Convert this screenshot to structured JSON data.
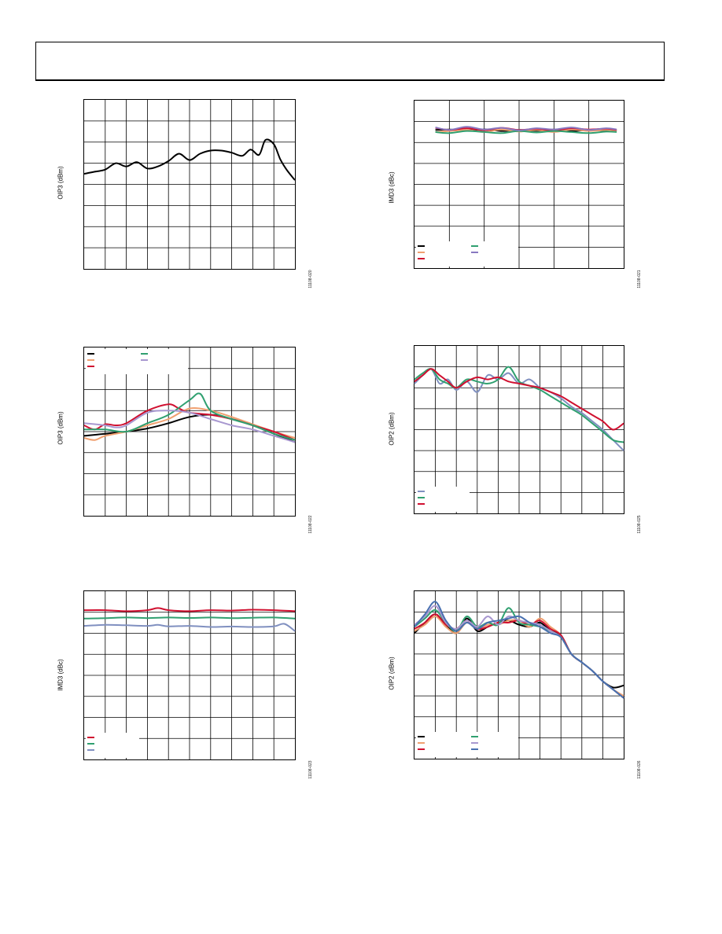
{
  "page": {},
  "figures": [
    {
      "id": "fig1",
      "ylabel": "OIP3 (dBm)",
      "figure_code": "11108-020"
    },
    {
      "id": "fig2",
      "ylabel": "IMD3 (dBc)",
      "figure_code": "11108-021"
    },
    {
      "id": "fig3",
      "ylabel": "OIP3 (dBm)",
      "figure_code": "11108-022"
    },
    {
      "id": "fig4",
      "ylabel": "OIP2 (dBm)",
      "figure_code": "11108-025"
    },
    {
      "id": "fig5",
      "ylabel": "IMD3 (dBc)",
      "figure_code": "11108-023"
    },
    {
      "id": "fig6",
      "ylabel": "OIP2 (dBm)",
      "figure_code": "11108-026"
    }
  ],
  "chart_data": [
    {
      "type": "line",
      "xlim": [
        0,
        10
      ],
      "ylim": [
        0,
        8
      ],
      "grid": true,
      "series": [
        {
          "color": "#000000",
          "x": [
            0,
            0.5,
            1,
            1.5,
            2,
            2.5,
            3,
            3.5,
            4,
            4.5,
            5,
            5.5,
            6,
            6.5,
            7,
            7.5,
            7.9,
            8.3,
            8.6,
            9.0,
            9.3,
            9.6,
            10
          ],
          "y": [
            4.5,
            4.6,
            4.7,
            5.0,
            4.85,
            5.05,
            4.75,
            4.85,
            5.1,
            5.45,
            5.15,
            5.45,
            5.6,
            5.6,
            5.5,
            5.35,
            5.65,
            5.4,
            6.1,
            5.9,
            5.2,
            4.7,
            4.2
          ]
        }
      ]
    },
    {
      "type": "line",
      "xlim": [
        0,
        6
      ],
      "ylim": [
        0,
        8
      ],
      "grid": true,
      "legend": "bottom-left",
      "series": [
        {
          "color": "#000000",
          "x": [
            0.6,
            1,
            1.5,
            2,
            2.5,
            3,
            3.5,
            4,
            4.5,
            5,
            5.5,
            5.8
          ],
          "y": [
            6.6,
            6.62,
            6.58,
            6.63,
            6.55,
            6.6,
            6.56,
            6.62,
            6.55,
            6.6,
            6.57,
            6.58
          ]
        },
        {
          "color": "#f0a070",
          "x": [
            0.6,
            1,
            1.5,
            2,
            2.5,
            3,
            3.5,
            4,
            4.5,
            5,
            5.5,
            5.8
          ],
          "y": [
            6.5,
            6.55,
            6.6,
            6.5,
            6.62,
            6.52,
            6.6,
            6.5,
            6.62,
            6.55,
            6.6,
            6.55
          ]
        },
        {
          "color": "#d01030",
          "x": [
            0.6,
            1,
            1.5,
            2,
            2.5,
            3,
            3.5,
            4,
            4.5,
            5,
            5.5,
            5.8
          ],
          "y": [
            6.7,
            6.6,
            6.68,
            6.58,
            6.7,
            6.6,
            6.65,
            6.58,
            6.68,
            6.62,
            6.66,
            6.6
          ]
        },
        {
          "color": "#30a070",
          "x": [
            0.6,
            1,
            1.5,
            2,
            2.5,
            3,
            3.5,
            4,
            4.5,
            5,
            5.5,
            5.8
          ],
          "y": [
            6.5,
            6.45,
            6.55,
            6.5,
            6.45,
            6.55,
            6.48,
            6.55,
            6.5,
            6.45,
            6.52,
            6.5
          ]
        },
        {
          "color": "#8878c0",
          "x": [
            0.6,
            1,
            1.5,
            2,
            2.5,
            3,
            3.5,
            4,
            4.5,
            5,
            5.5,
            5.8
          ],
          "y": [
            6.72,
            6.6,
            6.75,
            6.62,
            6.7,
            6.58,
            6.68,
            6.62,
            6.72,
            6.6,
            6.68,
            6.62
          ]
        }
      ]
    },
    {
      "type": "line",
      "xlim": [
        0,
        10
      ],
      "ylim": [
        0,
        8
      ],
      "grid": true,
      "legend": "top-left",
      "series": [
        {
          "color": "#000000",
          "x": [
            0,
            1,
            2,
            3,
            4,
            5,
            6,
            7,
            8,
            9,
            10
          ],
          "y": [
            3.8,
            3.9,
            4.0,
            4.15,
            4.4,
            4.7,
            4.8,
            4.6,
            4.3,
            3.9,
            3.5
          ]
        },
        {
          "color": "#f0a070",
          "x": [
            0,
            0.5,
            1,
            2,
            3,
            4,
            5,
            6,
            7,
            8,
            9,
            10
          ],
          "y": [
            3.7,
            3.6,
            3.8,
            4.0,
            4.3,
            4.6,
            5.1,
            5.0,
            4.7,
            4.35,
            4.0,
            3.7
          ]
        },
        {
          "color": "#d01030",
          "x": [
            0,
            0.5,
            1,
            1.5,
            2,
            3,
            4,
            4.5,
            5,
            6,
            7,
            8,
            9,
            10
          ],
          "y": [
            4.3,
            4.1,
            4.35,
            4.3,
            4.4,
            5.0,
            5.3,
            5.1,
            4.9,
            4.8,
            4.6,
            4.3,
            4.0,
            3.6
          ]
        },
        {
          "color": "#30a070",
          "x": [
            0,
            1,
            2,
            3,
            4,
            5,
            5.5,
            6,
            7,
            8,
            9,
            10
          ],
          "y": [
            4.1,
            4.1,
            4.0,
            4.4,
            4.8,
            5.5,
            5.8,
            5.0,
            4.6,
            4.3,
            3.9,
            3.6
          ]
        },
        {
          "color": "#a898d0",
          "x": [
            0,
            1,
            1.5,
            2,
            3,
            4,
            5,
            6,
            7,
            8,
            9,
            10
          ],
          "y": [
            4.4,
            4.3,
            4.2,
            4.3,
            4.9,
            5.0,
            4.9,
            4.6,
            4.3,
            4.1,
            3.8,
            3.5
          ]
        }
      ]
    },
    {
      "type": "line",
      "xlim": [
        0,
        10
      ],
      "ylim": [
        0,
        8
      ],
      "grid": true,
      "legend": "bottom-left",
      "series": [
        {
          "color": "#8090c0",
          "x": [
            0,
            0.4,
            0.8,
            1.2,
            1.6,
            2,
            2.5,
            3,
            3.5,
            4,
            4.5,
            5,
            5.5,
            6,
            6.5,
            7,
            7.5,
            8,
            8.5,
            9,
            9.5,
            10
          ],
          "y": [
            6.2,
            6.6,
            6.9,
            6.2,
            6.4,
            5.9,
            6.3,
            5.8,
            6.6,
            6.4,
            6.7,
            6.2,
            6.4,
            6.0,
            5.8,
            5.5,
            5.1,
            4.8,
            4.4,
            4.0,
            3.5,
            3.0
          ]
        },
        {
          "color": "#30a070",
          "x": [
            0,
            0.4,
            0.8,
            1.2,
            1.6,
            2,
            2.5,
            3,
            3.5,
            4,
            4.5,
            5,
            5.5,
            6,
            6.5,
            7,
            7.5,
            8,
            8.5,
            9,
            9.5,
            10
          ],
          "y": [
            6.4,
            6.7,
            6.9,
            6.4,
            6.2,
            6.0,
            6.4,
            6.3,
            6.2,
            6.4,
            7.0,
            6.3,
            6.1,
            5.9,
            5.6,
            5.3,
            5.0,
            4.7,
            4.3,
            3.9,
            3.5,
            3.4
          ]
        },
        {
          "color": "#d01030",
          "x": [
            0,
            0.4,
            0.8,
            1.2,
            1.6,
            2,
            2.5,
            3,
            3.5,
            4,
            4.5,
            5,
            5.5,
            6,
            6.5,
            7,
            7.5,
            8,
            8.5,
            9,
            9.5,
            10
          ],
          "y": [
            6.3,
            6.6,
            6.9,
            6.6,
            6.3,
            6.0,
            6.3,
            6.5,
            6.4,
            6.5,
            6.3,
            6.2,
            6.1,
            6.0,
            5.8,
            5.6,
            5.3,
            5.0,
            4.7,
            4.4,
            4.0,
            4.3
          ]
        }
      ]
    },
    {
      "type": "line",
      "xlim": [
        0,
        10
      ],
      "ylim": [
        0,
        8
      ],
      "grid": true,
      "legend": "bottom-left",
      "series": [
        {
          "color": "#d01030",
          "x": [
            0,
            1,
            2,
            3,
            3.5,
            4,
            5,
            6,
            7,
            8,
            9,
            10
          ],
          "y": [
            7.1,
            7.1,
            7.05,
            7.1,
            7.2,
            7.1,
            7.05,
            7.1,
            7.08,
            7.12,
            7.1,
            7.05
          ]
        },
        {
          "color": "#30a070",
          "x": [
            0,
            1,
            2,
            3,
            4,
            5,
            6,
            7,
            8,
            9,
            10
          ],
          "y": [
            6.7,
            6.72,
            6.75,
            6.72,
            6.75,
            6.73,
            6.75,
            6.72,
            6.74,
            6.75,
            6.7
          ]
        },
        {
          "color": "#8090c0",
          "x": [
            0,
            1,
            2,
            3,
            3.5,
            4,
            5,
            6,
            7,
            8,
            9,
            9.5,
            10
          ],
          "y": [
            6.35,
            6.4,
            6.38,
            6.35,
            6.4,
            6.33,
            6.35,
            6.3,
            6.32,
            6.3,
            6.33,
            6.45,
            6.1
          ]
        }
      ]
    },
    {
      "type": "line",
      "xlim": [
        0,
        10
      ],
      "ylim": [
        0,
        8
      ],
      "grid": true,
      "legend": "bottom-left",
      "series": [
        {
          "color": "#000000",
          "x": [
            0,
            0.5,
            1,
            1.5,
            2,
            2.5,
            3,
            3.5,
            4,
            4.5,
            5,
            5.5,
            6,
            6.5,
            7,
            7.5,
            8,
            8.5,
            9,
            9.5,
            10
          ],
          "y": [
            6.0,
            6.5,
            6.9,
            6.4,
            6.0,
            6.7,
            6.1,
            6.3,
            6.5,
            6.6,
            6.4,
            6.3,
            6.5,
            6.1,
            5.9,
            5.0,
            4.6,
            4.2,
            3.7,
            3.4,
            3.5
          ]
        },
        {
          "color": "#f0a070",
          "x": [
            0,
            0.5,
            1,
            1.5,
            2,
            2.5,
            3,
            3.5,
            4,
            4.5,
            5,
            5.5,
            6,
            6.5,
            7,
            7.5,
            8,
            8.5,
            9,
            9.5,
            10
          ],
          "y": [
            6.1,
            6.4,
            6.8,
            6.3,
            6.0,
            6.5,
            6.2,
            6.4,
            6.4,
            6.6,
            6.6,
            6.3,
            6.7,
            6.3,
            5.9,
            5.0,
            4.6,
            4.2,
            3.7,
            3.3,
            3.0
          ]
        },
        {
          "color": "#d01030",
          "x": [
            0,
            0.5,
            1,
            1.5,
            2,
            2.5,
            3,
            3.5,
            4,
            4.5,
            5,
            5.5,
            6,
            6.5,
            7,
            7.5,
            8,
            8.5,
            9,
            9.5,
            10
          ],
          "y": [
            6.2,
            6.5,
            6.9,
            6.4,
            6.2,
            6.6,
            6.2,
            6.3,
            6.5,
            6.5,
            6.6,
            6.4,
            6.6,
            6.2,
            5.9,
            5.0,
            4.6,
            4.2,
            3.7,
            3.3,
            2.9
          ]
        },
        {
          "color": "#30a070",
          "x": [
            0,
            0.5,
            1,
            1.5,
            2,
            2.5,
            3,
            3.5,
            4,
            4.5,
            5,
            5.5,
            6,
            6.5,
            7,
            7.5,
            8,
            8.5,
            9,
            9.5,
            10
          ],
          "y": [
            6.3,
            6.7,
            7.1,
            6.5,
            6.1,
            6.8,
            6.3,
            6.5,
            6.4,
            7.2,
            6.5,
            6.4,
            6.3,
            6.1,
            5.8,
            5.0,
            4.6,
            4.2,
            3.7,
            3.3,
            2.9
          ]
        },
        {
          "color": "#a898d0",
          "x": [
            0,
            0.5,
            1,
            1.5,
            2,
            2.5,
            3,
            3.5,
            4,
            4.5,
            5,
            5.5,
            6,
            6.5,
            7,
            7.5,
            8,
            8.5,
            9,
            9.5,
            10
          ],
          "y": [
            6.4,
            6.8,
            7.3,
            6.5,
            6.2,
            6.6,
            6.3,
            6.8,
            6.4,
            6.8,
            6.6,
            6.5,
            6.4,
            6.1,
            5.8,
            5.0,
            4.6,
            4.2,
            3.7,
            3.3,
            2.9
          ]
        },
        {
          "color": "#4870b0",
          "x": [
            0,
            0.5,
            1,
            1.5,
            2,
            2.5,
            3,
            3.5,
            4,
            4.5,
            5,
            5.5,
            6,
            6.5,
            7,
            7.5,
            8,
            8.5,
            9,
            9.5,
            10
          ],
          "y": [
            6.3,
            6.9,
            7.5,
            6.6,
            6.1,
            6.5,
            6.2,
            6.5,
            6.6,
            6.7,
            6.8,
            6.5,
            6.3,
            6.0,
            5.8,
            5.0,
            4.6,
            4.2,
            3.7,
            3.3,
            2.9
          ]
        }
      ]
    }
  ]
}
